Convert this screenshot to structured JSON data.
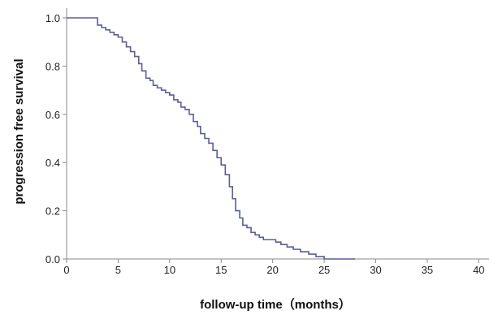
{
  "chart_data": {
    "type": "line",
    "subtype": "kaplan-meier step curve",
    "title": "",
    "xlabel": "follow-up time（months）",
    "ylabel": "progression free survival",
    "xlim": [
      0,
      41
    ],
    "ylim": [
      0.0,
      1.0
    ],
    "x_ticks": [
      0,
      5,
      10,
      15,
      20,
      25,
      30,
      35,
      40
    ],
    "y_ticks": [
      0.0,
      0.2,
      0.4,
      0.6,
      0.8,
      1.0
    ],
    "x_tick_labels": [
      "0",
      "5",
      "10",
      "15",
      "20",
      "25",
      "30",
      "35",
      "40"
    ],
    "y_tick_labels": [
      "0.0",
      "0.2",
      "0.4",
      "0.6",
      "0.8",
      "1.0"
    ],
    "grid": false,
    "series": [
      {
        "color": "#5a5e9a",
        "x": [
          0,
          3.0,
          3.4,
          3.8,
          4.2,
          4.6,
          5.0,
          5.4,
          5.8,
          6.2,
          6.6,
          7.0,
          7.3,
          7.7,
          8.1,
          8.4,
          8.8,
          9.2,
          9.6,
          10.0,
          10.4,
          10.8,
          11.1,
          11.5,
          11.9,
          12.3,
          12.7,
          13.0,
          13.4,
          13.8,
          14.2,
          14.6,
          15.0,
          15.4,
          15.8,
          16.1,
          16.4,
          16.8,
          17.1,
          17.5,
          17.9,
          18.3,
          18.7,
          19.1,
          19.5,
          19.9,
          20.3,
          20.8,
          21.4,
          22.0,
          22.7,
          23.5,
          24.2,
          25.0,
          28.0
        ],
        "y": [
          1.0,
          0.97,
          0.96,
          0.95,
          0.94,
          0.93,
          0.92,
          0.9,
          0.88,
          0.86,
          0.84,
          0.81,
          0.78,
          0.75,
          0.74,
          0.72,
          0.71,
          0.7,
          0.69,
          0.68,
          0.66,
          0.65,
          0.63,
          0.62,
          0.6,
          0.57,
          0.55,
          0.52,
          0.5,
          0.48,
          0.45,
          0.42,
          0.39,
          0.35,
          0.3,
          0.25,
          0.2,
          0.17,
          0.14,
          0.13,
          0.11,
          0.1,
          0.09,
          0.08,
          0.08,
          0.08,
          0.07,
          0.06,
          0.05,
          0.04,
          0.03,
          0.02,
          0.01,
          0.0,
          0.0
        ]
      }
    ]
  }
}
